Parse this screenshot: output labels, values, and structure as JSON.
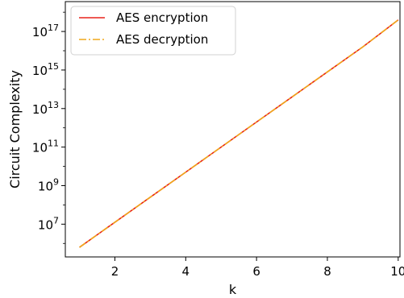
{
  "chart_data": {
    "type": "line",
    "xlabel": "k",
    "ylabel": "Circuit Complexity",
    "yscale": "log",
    "xlim": [
      0.6,
      10.05
    ],
    "ylim_log10": [
      5.3,
      18.55
    ],
    "x_ticks": [
      2,
      4,
      6,
      8,
      10
    ],
    "y_ticks": [
      {
        "exp": 7,
        "base": "10",
        "sup": "7"
      },
      {
        "exp": 9,
        "base": "10",
        "sup": "9"
      },
      {
        "exp": 11,
        "base": "10",
        "sup": "11"
      },
      {
        "exp": 13,
        "base": "10",
        "sup": "13"
      },
      {
        "exp": 15,
        "base": "10",
        "sup": "15"
      },
      {
        "exp": 17,
        "base": "10",
        "sup": "17"
      }
    ],
    "legend_position": "upper-left",
    "grid": false,
    "series": [
      {
        "name": "AES encryption",
        "color": "#e8231c",
        "style": "solid",
        "x": [
          1,
          2,
          3,
          4,
          5,
          6,
          7,
          8,
          9,
          10
        ],
        "y_log10": [
          5.8,
          7.1,
          8.4,
          9.7,
          11.0,
          12.3,
          13.6,
          14.9,
          16.2,
          17.6
        ]
      },
      {
        "name": "AES decryption",
        "color": "#f0a81b",
        "style": "dashdot",
        "x": [
          1,
          2,
          3,
          4,
          5,
          6,
          7,
          8,
          9,
          10
        ],
        "y_log10": [
          5.8,
          7.1,
          8.4,
          9.7,
          11.0,
          12.3,
          13.6,
          14.9,
          16.2,
          17.6
        ]
      }
    ]
  }
}
